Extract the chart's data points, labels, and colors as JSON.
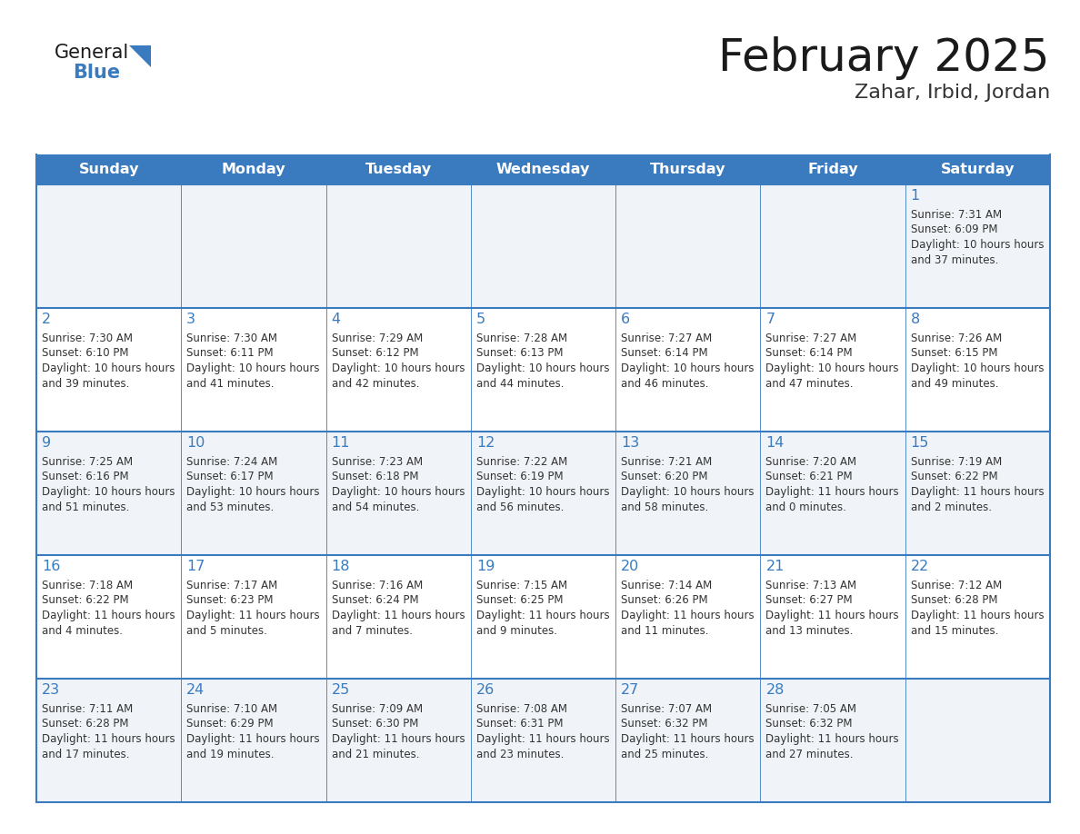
{
  "title": "February 2025",
  "subtitle": "Zahar, Irbid, Jordan",
  "days_of_week": [
    "Sunday",
    "Monday",
    "Tuesday",
    "Wednesday",
    "Thursday",
    "Friday",
    "Saturday"
  ],
  "header_bg": "#3a7bbf",
  "header_text": "#FFFFFF",
  "cell_bg_even": "#f0f4f8",
  "cell_bg_odd": "#f0f4f8",
  "cell_bg_white": "#ffffff",
  "border_color": "#3a7bbf",
  "day_num_color": "#3a7bbf",
  "cell_text_color": "#333333",
  "title_color": "#1a1a1a",
  "subtitle_color": "#333333",
  "logo_general_color": "#1a1a1a",
  "logo_blue_color": "#3a7bbf",
  "calendar_data": [
    [
      null,
      null,
      null,
      null,
      null,
      null,
      {
        "day": 1,
        "sunrise": "7:31 AM",
        "sunset": "6:09 PM",
        "daylight": "10 hours and 37 minutes."
      }
    ],
    [
      {
        "day": 2,
        "sunrise": "7:30 AM",
        "sunset": "6:10 PM",
        "daylight": "10 hours and 39 minutes."
      },
      {
        "day": 3,
        "sunrise": "7:30 AM",
        "sunset": "6:11 PM",
        "daylight": "10 hours and 41 minutes."
      },
      {
        "day": 4,
        "sunrise": "7:29 AM",
        "sunset": "6:12 PM",
        "daylight": "10 hours and 42 minutes."
      },
      {
        "day": 5,
        "sunrise": "7:28 AM",
        "sunset": "6:13 PM",
        "daylight": "10 hours and 44 minutes."
      },
      {
        "day": 6,
        "sunrise": "7:27 AM",
        "sunset": "6:14 PM",
        "daylight": "10 hours and 46 minutes."
      },
      {
        "day": 7,
        "sunrise": "7:27 AM",
        "sunset": "6:14 PM",
        "daylight": "10 hours and 47 minutes."
      },
      {
        "day": 8,
        "sunrise": "7:26 AM",
        "sunset": "6:15 PM",
        "daylight": "10 hours and 49 minutes."
      }
    ],
    [
      {
        "day": 9,
        "sunrise": "7:25 AM",
        "sunset": "6:16 PM",
        "daylight": "10 hours and 51 minutes."
      },
      {
        "day": 10,
        "sunrise": "7:24 AM",
        "sunset": "6:17 PM",
        "daylight": "10 hours and 53 minutes."
      },
      {
        "day": 11,
        "sunrise": "7:23 AM",
        "sunset": "6:18 PM",
        "daylight": "10 hours and 54 minutes."
      },
      {
        "day": 12,
        "sunrise": "7:22 AM",
        "sunset": "6:19 PM",
        "daylight": "10 hours and 56 minutes."
      },
      {
        "day": 13,
        "sunrise": "7:21 AM",
        "sunset": "6:20 PM",
        "daylight": "10 hours and 58 minutes."
      },
      {
        "day": 14,
        "sunrise": "7:20 AM",
        "sunset": "6:21 PM",
        "daylight": "11 hours and 0 minutes."
      },
      {
        "day": 15,
        "sunrise": "7:19 AM",
        "sunset": "6:22 PM",
        "daylight": "11 hours and 2 minutes."
      }
    ],
    [
      {
        "day": 16,
        "sunrise": "7:18 AM",
        "sunset": "6:22 PM",
        "daylight": "11 hours and 4 minutes."
      },
      {
        "day": 17,
        "sunrise": "7:17 AM",
        "sunset": "6:23 PM",
        "daylight": "11 hours and 5 minutes."
      },
      {
        "day": 18,
        "sunrise": "7:16 AM",
        "sunset": "6:24 PM",
        "daylight": "11 hours and 7 minutes."
      },
      {
        "day": 19,
        "sunrise": "7:15 AM",
        "sunset": "6:25 PM",
        "daylight": "11 hours and 9 minutes."
      },
      {
        "day": 20,
        "sunrise": "7:14 AM",
        "sunset": "6:26 PM",
        "daylight": "11 hours and 11 minutes."
      },
      {
        "day": 21,
        "sunrise": "7:13 AM",
        "sunset": "6:27 PM",
        "daylight": "11 hours and 13 minutes."
      },
      {
        "day": 22,
        "sunrise": "7:12 AM",
        "sunset": "6:28 PM",
        "daylight": "11 hours and 15 minutes."
      }
    ],
    [
      {
        "day": 23,
        "sunrise": "7:11 AM",
        "sunset": "6:28 PM",
        "daylight": "11 hours and 17 minutes."
      },
      {
        "day": 24,
        "sunrise": "7:10 AM",
        "sunset": "6:29 PM",
        "daylight": "11 hours and 19 minutes."
      },
      {
        "day": 25,
        "sunrise": "7:09 AM",
        "sunset": "6:30 PM",
        "daylight": "11 hours and 21 minutes."
      },
      {
        "day": 26,
        "sunrise": "7:08 AM",
        "sunset": "6:31 PM",
        "daylight": "11 hours and 23 minutes."
      },
      {
        "day": 27,
        "sunrise": "7:07 AM",
        "sunset": "6:32 PM",
        "daylight": "11 hours and 25 minutes."
      },
      {
        "day": 28,
        "sunrise": "7:05 AM",
        "sunset": "6:32 PM",
        "daylight": "11 hours and 27 minutes."
      },
      null
    ]
  ]
}
